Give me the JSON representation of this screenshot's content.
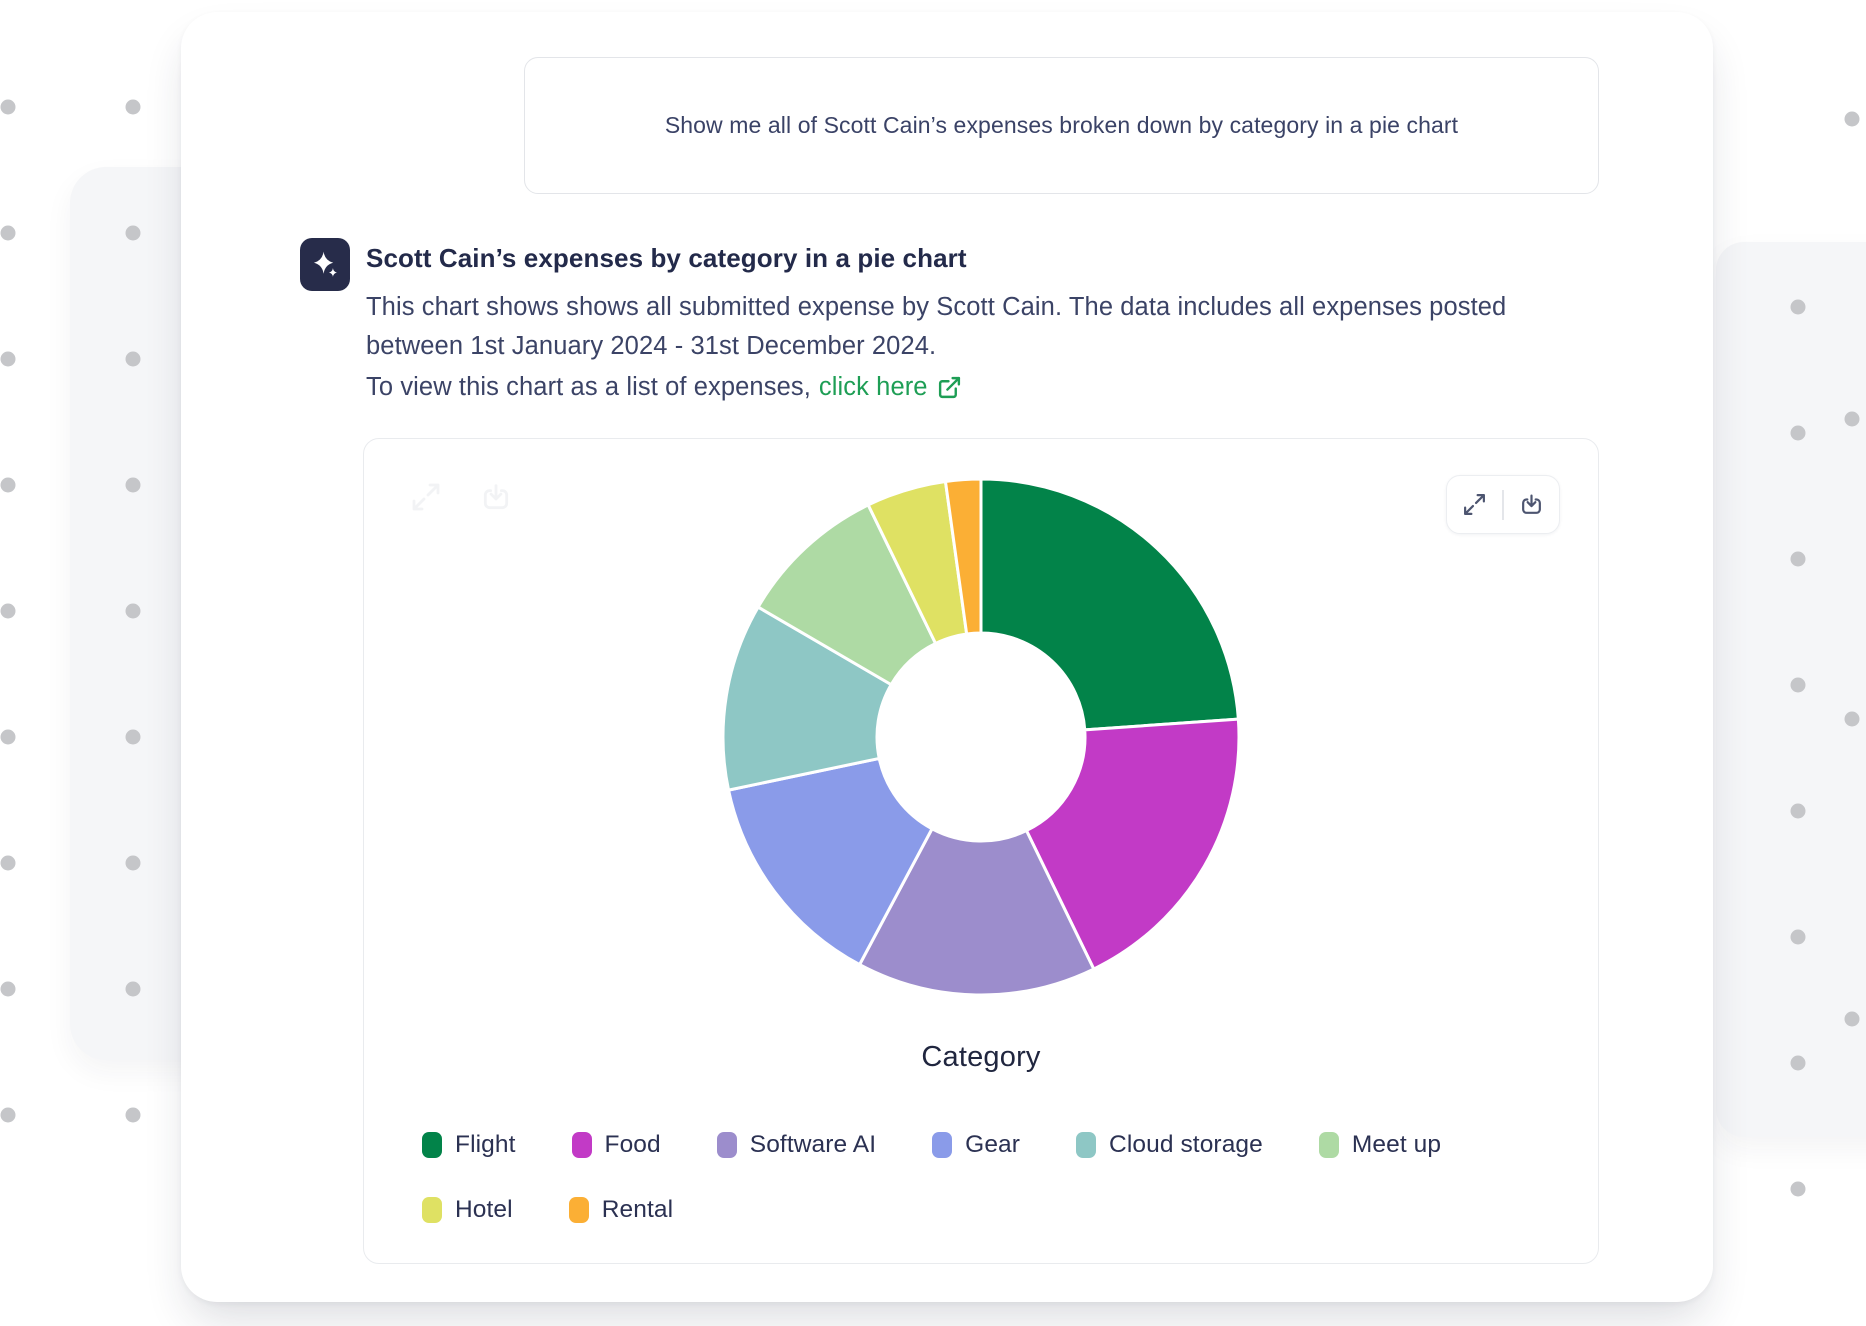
{
  "query_bubble": {
    "text": "Show me all of Scott Cain’s expenses broken down by category in a pie chart"
  },
  "response": {
    "icon": "sparkle-icon",
    "title": "Scott Cain’s expenses by category in a pie chart",
    "body": "This chart shows shows all submitted expense by Scott Cain. The data includes all expenses posted between 1st January 2024 - 31st December 2024.",
    "link_prefix": "To view this chart as a list of expenses,",
    "link_label": "click here",
    "link_icon": "external-link-icon"
  },
  "chart_panel": {
    "toolbar_icons": [
      "expand-icon",
      "download-icon"
    ]
  },
  "chart_data": {
    "type": "pie",
    "donut": true,
    "inner_radius_ratio": 0.4,
    "start_angle_deg": 0,
    "title": "Category",
    "legend_position": "bottom",
    "note": "no numeric labels shown; values are percent of total estimated from arc angles",
    "slices": [
      {
        "label": "Flight",
        "value": 23.9,
        "color": "#028349"
      },
      {
        "label": "Food",
        "value": 18.9,
        "color": "#c23ac6"
      },
      {
        "label": "Software AI",
        "value": 15.0,
        "color": "#9c8dcc"
      },
      {
        "label": "Gear",
        "value": 13.9,
        "color": "#8a9be9"
      },
      {
        "label": "Cloud storage",
        "value": 11.7,
        "color": "#8ec7c5"
      },
      {
        "label": "Meet up",
        "value": 9.4,
        "color": "#aedaa4"
      },
      {
        "label": "Hotel",
        "value": 5.0,
        "color": "#dfe163"
      },
      {
        "label": "Rental",
        "value": 2.2,
        "color": "#fbaf35"
      }
    ]
  },
  "colors": {
    "link_green": "#1e9e55",
    "ai_tile_navy": "#272c4a",
    "text_navy": "#2b3152"
  }
}
